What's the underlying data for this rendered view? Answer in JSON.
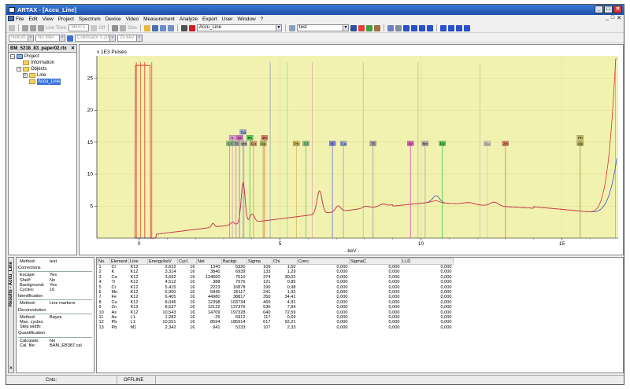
{
  "window": {
    "title": "ARTAX - [Accu_Line]",
    "minimize": "_",
    "maximize": "□",
    "close": "✕"
  },
  "menu": [
    "File",
    "Edit",
    "View",
    "Project",
    "Spectrum",
    "Device",
    "Video",
    "Measurement",
    "Analyze",
    "Export",
    "User",
    "Window",
    "?"
  ],
  "mdi_controls": [
    "_",
    "□",
    "✕"
  ],
  "toolbar1": {
    "live_time_label": "Live Time:",
    "live_time_value": "9600 s",
    "off_label": "Off",
    "size_label": "Size",
    "spectrum_combo": "Accu_Line",
    "method_combo": "test"
  },
  "toolbar2": {
    "atmosphere": "Helium",
    "filter": "No filter",
    "collimator": "Collimator 0,200",
    "voltage": "25 keV"
  },
  "tree": {
    "tab": "BM_5218_83_paper02.rtx",
    "close": "✕",
    "expand_minus": "−",
    "expand_plus": "+",
    "nodes": [
      "Project",
      "Information",
      "Objects",
      "Line",
      "Accu_Line"
    ]
  },
  "chart": {
    "ylabel": "x 1E3 Pulses",
    "xlabel": "- keV -",
    "x_ticks": [
      "0",
      "5",
      "10",
      "15"
    ],
    "y_ticks": [
      "5",
      "10",
      "15",
      "20",
      "25"
    ],
    "xlim": [
      -1.5,
      17.0
    ],
    "ylim": [
      0,
      28.5
    ],
    "colors": {
      "plot_bg": "#f2f2b0",
      "grid": "#dada8a",
      "spectrum_red": "#e03030",
      "spectrum_blue": "#3a50c8"
    },
    "element_markers": [
      {
        "label": "Ca",
        "e": 3.69,
        "color": "#9aa8d8",
        "row": 0
      },
      {
        "label": "K",
        "e": 3.31,
        "color": "#d8a0d8",
        "row": 1
      },
      {
        "label": "Cr",
        "e": 3.56,
        "color": "#e060c0",
        "row": 1
      },
      {
        "label": "Fe",
        "e": 3.93,
        "color": "#50d050",
        "row": 1
      },
      {
        "label": "Zn",
        "e": 4.45,
        "color": "#e08060",
        "row": 1
      },
      {
        "label": "Cl",
        "e": 3.21,
        "color": "#80c080",
        "row": 2
      },
      {
        "label": "Ti",
        "e": 3.44,
        "color": "#a0a0a0",
        "row": 2
      },
      {
        "label": "Mn",
        "e": 3.72,
        "color": "#b0b0b0",
        "row": 2
      },
      {
        "label": "Cu",
        "e": 4.06,
        "color": "#d0a070",
        "row": 2
      },
      {
        "label": "As",
        "e": 4.4,
        "color": "#b0b050",
        "row": 2
      },
      {
        "label": "Pb",
        "e": 5.58,
        "color": "#d0c060",
        "row": 2
      },
      {
        "label": "Cl",
        "e": 5.92,
        "color": "#80c080",
        "row": 2
      },
      {
        "label": "K",
        "e": 6.86,
        "color": "#8080e0",
        "row": 2
      },
      {
        "label": "Ca",
        "e": 7.25,
        "color": "#9aa8d8",
        "row": 2
      },
      {
        "label": "Ti",
        "e": 8.3,
        "color": "#a0a0a0",
        "row": 2
      },
      {
        "label": "Cr",
        "e": 9.63,
        "color": "#e060c0",
        "row": 2
      },
      {
        "label": "Mn",
        "e": 10.15,
        "color": "#b0b0b0",
        "row": 2
      },
      {
        "label": "Fe",
        "e": 10.76,
        "color": "#50d050",
        "row": 2
      },
      {
        "label": "Cu",
        "e": 12.35,
        "color": "#d0d0d0",
        "row": 2
      },
      {
        "label": "Zn",
        "e": 13.0,
        "color": "#e08060",
        "row": 2
      },
      {
        "label": "Pb",
        "e": 15.65,
        "color": "#d0c060",
        "row": 1
      },
      {
        "label": "As",
        "e": 15.65,
        "color": "#b0b050",
        "row": 2
      }
    ]
  },
  "sidetab": {
    "label": "Results - Accu_Line",
    "close": "✕"
  },
  "info": {
    "method_label": "Method:",
    "method_value": "test",
    "corrections_title": "Corrections",
    "corrections": [
      {
        "k": "Escape:",
        "v": "Yes"
      },
      {
        "k": "Shelf:",
        "v": "No"
      },
      {
        "k": "Background:",
        "v": "Yes"
      },
      {
        "k": "Cycles:",
        "v": "16"
      }
    ],
    "identification_title": "Identification",
    "identification": [
      {
        "k": "Method:",
        "v": "Line markers"
      }
    ],
    "deconvolution_title": "Deconvolution",
    "deconvolution": [
      {
        "k": "Method:",
        "v": "Bayes"
      },
      {
        "k": "Max. cycles:",
        "v": ""
      },
      {
        "k": "Step width:",
        "v": ""
      }
    ],
    "quantification_title": "Quantification",
    "quantification": [
      {
        "k": "Calculate:",
        "v": "No"
      },
      {
        "k": "Cal. file:",
        "v": "BAM_EB387.cal"
      }
    ]
  },
  "table": {
    "headers": [
      "No.",
      "Element",
      "Line",
      "Energy/keV",
      "Cycl.",
      "Net",
      "Backgr.",
      "Sigma",
      "Chi",
      "Conc.",
      "SigmaC",
      "LLD"
    ],
    "rows": [
      [
        "1",
        "Cl",
        "K12",
        "2,622",
        "16",
        "1340",
        "5320",
        "109",
        "1,50",
        "0,000",
        "0,000",
        "0,000"
      ],
      [
        "2",
        "K",
        "K12",
        "3,314",
        "16",
        "3840",
        "6939",
        "133",
        "1,29",
        "0,000",
        "0,000",
        "0,000"
      ],
      [
        "3",
        "Ca",
        "K12",
        "3,692",
        "16",
        "124660",
        "7510",
        "374",
        "30,02",
        "0,000",
        "0,000",
        "0,000"
      ],
      [
        "4",
        "Ti",
        "K12",
        "4,512",
        "16",
        "388",
        "7076",
        "121",
        "0,85",
        "0,000",
        "0,000",
        "0,000"
      ],
      [
        "5",
        "Cr",
        "K12",
        "5,415",
        "16",
        "2223",
        "16878",
        "190",
        "0,98",
        "0,000",
        "0,000",
        "0,000"
      ],
      [
        "6",
        "Mn",
        "K12",
        "5,900",
        "16",
        "5845",
        "26117",
        "241",
        "1,92",
        "0,000",
        "0,000",
        "0,000"
      ],
      [
        "7",
        "Fe",
        "K12",
        "6,405",
        "16",
        "44980",
        "38817",
        "350",
        "34,41",
        "0,000",
        "0,000",
        "0,000"
      ],
      [
        "8",
        "Cu",
        "K12",
        "8,046",
        "16",
        "12398",
        "103734",
        "469",
        "4,91",
        "0,000",
        "0,000",
        "0,000"
      ],
      [
        "9",
        "Zn",
        "K12",
        "8,637",
        "16",
        "12122",
        "137376",
        "536",
        "7,84",
        "0,000",
        "0,000",
        "0,000"
      ],
      [
        "10",
        "As",
        "K12",
        "10,543",
        "16",
        "14709",
        "197328",
        "640",
        "72,59",
        "0,000",
        "0,000",
        "0,000"
      ],
      [
        "11",
        "As",
        "L1",
        "1,282",
        "16",
        "-25",
        "6912",
        "117",
        "0,69",
        "0,000",
        "0,000",
        "0,000"
      ],
      [
        "12",
        "Pb",
        "L1",
        "10,551",
        "16",
        "8594",
        "185914",
        "617",
        "92,21",
        "0,000",
        "0,000",
        "0,000"
      ],
      [
        "13",
        "Pb",
        "M1",
        "2,342",
        "16",
        "941",
        "5233",
        "107",
        "2,33",
        "0,000",
        "0,000",
        "0,000"
      ]
    ]
  },
  "status": {
    "left": "Cnts:",
    "mode": "OFFLINE"
  }
}
